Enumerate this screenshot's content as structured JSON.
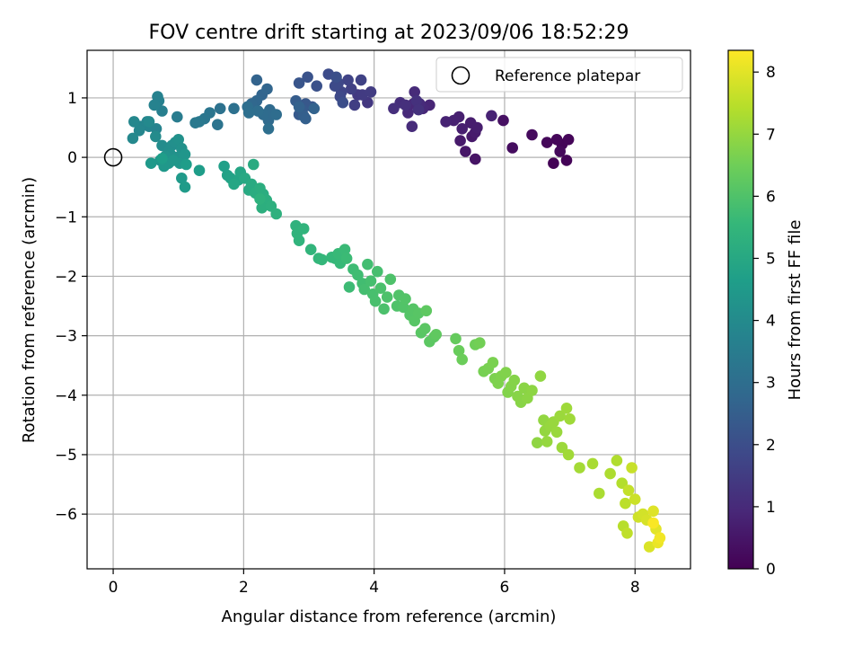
{
  "chart_data": {
    "type": "scatter",
    "title": "FOV centre drift starting at 2023/09/06 18:52:29",
    "xlabel": "Angular distance from reference (arcmin)",
    "ylabel": "Rotation from reference (arcmin)",
    "xlim": [
      -0.4,
      8.85
    ],
    "ylim": [
      -6.92,
      1.8
    ],
    "xticks": [
      0,
      2,
      4,
      6,
      8
    ],
    "yticks": [
      1,
      0,
      -1,
      -2,
      -3,
      -4,
      -5,
      -6
    ],
    "grid": true,
    "legend": {
      "placement": "top-right",
      "entries": [
        "Reference platepar"
      ]
    },
    "reference_point": {
      "x": 0,
      "y": 0,
      "label": "Reference platepar"
    },
    "colorbar": {
      "label": "Hours from first FF file",
      "range": [
        0,
        8.35
      ],
      "ticks": [
        0,
        1,
        2,
        3,
        4,
        5,
        6,
        7,
        8
      ],
      "colormap": "viridis",
      "colors": [
        "#440154",
        "#482878",
        "#3e4989",
        "#31688e",
        "#26828e",
        "#1f9e89",
        "#35b779",
        "#6ece58",
        "#b5de2b",
        "#fde725"
      ]
    },
    "points": [
      [
        6.75,
        -0.1,
        0.05
      ],
      [
        6.95,
        -0.05,
        0.08
      ],
      [
        6.88,
        0.22,
        0.1
      ],
      [
        6.98,
        0.3,
        0.12
      ],
      [
        6.8,
        0.3,
        0.14
      ],
      [
        6.65,
        0.25,
        0.16
      ],
      [
        6.85,
        0.1,
        0.18
      ],
      [
        6.42,
        0.38,
        0.22
      ],
      [
        6.12,
        0.16,
        0.28
      ],
      [
        5.98,
        0.62,
        0.35
      ],
      [
        5.55,
        -0.03,
        0.45
      ],
      [
        5.4,
        0.1,
        0.5
      ],
      [
        5.5,
        0.35,
        0.55
      ],
      [
        5.32,
        0.28,
        0.6
      ],
      [
        5.55,
        0.42,
        0.63
      ],
      [
        5.48,
        0.58,
        0.66
      ],
      [
        5.58,
        0.5,
        0.68
      ],
      [
        5.35,
        0.48,
        0.7
      ],
      [
        5.3,
        0.68,
        0.73
      ],
      [
        5.22,
        0.62,
        0.76
      ],
      [
        5.1,
        0.6,
        0.8
      ],
      [
        5.8,
        0.7,
        0.82
      ],
      [
        4.85,
        0.88,
        0.88
      ],
      [
        4.75,
        0.82,
        0.92
      ],
      [
        4.6,
        0.9,
        0.95
      ],
      [
        4.52,
        0.75,
        0.98
      ],
      [
        4.62,
        1.1,
        1.0
      ],
      [
        4.7,
        0.9,
        1.02
      ],
      [
        4.58,
        0.52,
        1.05
      ],
      [
        4.4,
        0.92,
        1.08
      ],
      [
        4.3,
        0.82,
        1.12
      ],
      [
        4.48,
        0.88,
        1.15
      ],
      [
        4.65,
        0.95,
        1.18
      ],
      [
        4.68,
        0.8,
        1.2
      ],
      [
        3.9,
        0.92,
        1.35
      ],
      [
        3.75,
        1.05,
        1.4
      ],
      [
        3.82,
        1.05,
        1.45
      ],
      [
        3.95,
        1.1,
        1.5
      ],
      [
        3.7,
        0.88,
        1.55
      ],
      [
        3.65,
        1.15,
        1.6
      ],
      [
        3.8,
        1.3,
        1.65
      ],
      [
        3.6,
        1.3,
        1.7
      ],
      [
        3.5,
        1.1,
        1.75
      ],
      [
        3.45,
        1.25,
        1.8
      ],
      [
        3.48,
        1.02,
        1.85
      ],
      [
        3.4,
        1.2,
        1.9
      ],
      [
        3.3,
        1.4,
        1.95
      ],
      [
        3.52,
        0.92,
        2.0
      ],
      [
        3.42,
        1.35,
        2.05
      ],
      [
        3.12,
        1.2,
        2.1
      ],
      [
        2.98,
        1.35,
        2.15
      ],
      [
        2.85,
        1.25,
        2.2
      ],
      [
        3.05,
        0.85,
        2.25
      ],
      [
        2.95,
        0.9,
        2.3
      ],
      [
        2.85,
        0.72,
        2.35
      ],
      [
        2.9,
        0.8,
        2.4
      ],
      [
        2.8,
        0.95,
        2.45
      ],
      [
        2.92,
        0.7,
        2.5
      ],
      [
        2.95,
        0.65,
        2.55
      ],
      [
        2.85,
        0.85,
        2.6
      ],
      [
        3.08,
        0.82,
        2.62
      ],
      [
        2.2,
        1.3,
        2.65
      ],
      [
        2.28,
        1.05,
        2.7
      ],
      [
        2.36,
        1.15,
        2.72
      ],
      [
        2.2,
        0.95,
        2.75
      ],
      [
        2.12,
        0.9,
        2.8
      ],
      [
        2.35,
        0.7,
        2.85
      ],
      [
        2.4,
        0.8,
        2.88
      ],
      [
        2.38,
        0.62,
        2.9
      ],
      [
        2.3,
        0.72,
        2.92
      ],
      [
        2.5,
        0.72,
        2.95
      ],
      [
        2.22,
        0.78,
        2.98
      ],
      [
        2.06,
        0.85,
        3.0
      ],
      [
        2.08,
        0.75,
        3.02
      ],
      [
        2.38,
        0.48,
        3.05
      ],
      [
        1.85,
        0.82,
        3.1
      ],
      [
        1.64,
        0.82,
        3.15
      ],
      [
        1.6,
        0.55,
        3.2
      ],
      [
        1.48,
        0.75,
        3.25
      ],
      [
        1.4,
        0.65,
        3.3
      ],
      [
        1.32,
        0.6,
        3.35
      ],
      [
        1.26,
        0.58,
        3.4
      ],
      [
        0.98,
        0.68,
        3.5
      ],
      [
        0.75,
        0.78,
        3.6
      ],
      [
        0.7,
        0.95,
        3.65
      ],
      [
        0.68,
        1.02,
        3.68
      ],
      [
        0.63,
        0.88,
        3.72
      ],
      [
        0.66,
        0.48,
        3.75
      ],
      [
        0.55,
        0.52,
        3.78
      ],
      [
        0.52,
        0.6,
        3.8
      ],
      [
        0.42,
        0.52,
        3.82
      ],
      [
        0.4,
        0.45,
        3.85
      ],
      [
        0.32,
        0.6,
        3.88
      ],
      [
        0.3,
        0.32,
        3.9
      ],
      [
        0.55,
        0.6,
        3.95
      ],
      [
        0.65,
        0.35,
        4.0
      ],
      [
        0.75,
        0.2,
        4.05
      ],
      [
        0.85,
        0.1,
        4.1
      ],
      [
        0.9,
        0.2,
        4.12
      ],
      [
        0.95,
        0.25,
        4.15
      ],
      [
        0.88,
        0.05,
        4.18
      ],
      [
        1.0,
        0.3,
        4.2
      ],
      [
        1.05,
        0.15,
        4.22
      ],
      [
        0.98,
        0.0,
        4.25
      ],
      [
        0.8,
        0.02,
        4.28
      ],
      [
        0.72,
        -0.05,
        4.3
      ],
      [
        0.85,
        -0.1,
        4.33
      ],
      [
        1.1,
        0.05,
        4.36
      ],
      [
        1.02,
        -0.1,
        4.4
      ],
      [
        0.92,
        -0.05,
        4.42
      ],
      [
        0.78,
        -0.15,
        4.45
      ],
      [
        0.58,
        -0.1,
        4.48
      ],
      [
        1.05,
        -0.35,
        4.52
      ],
      [
        1.1,
        -0.5,
        4.55
      ],
      [
        1.32,
        -0.22,
        4.6
      ],
      [
        1.12,
        -0.12,
        4.62
      ],
      [
        0.75,
        -0.02,
        4.65
      ],
      [
        1.7,
        -0.15,
        4.7
      ],
      [
        1.75,
        -0.3,
        4.75
      ],
      [
        1.8,
        -0.35,
        4.8
      ],
      [
        1.92,
        -0.38,
        4.85
      ],
      [
        1.95,
        -0.25,
        4.9
      ],
      [
        1.85,
        -0.45,
        4.95
      ],
      [
        2.02,
        -0.35,
        5.0
      ],
      [
        2.08,
        -0.55,
        5.05
      ],
      [
        2.12,
        -0.45,
        5.08
      ],
      [
        2.15,
        -0.12,
        5.1
      ],
      [
        2.18,
        -0.6,
        5.15
      ],
      [
        2.3,
        -0.62,
        5.18
      ],
      [
        2.25,
        -0.52,
        5.2
      ],
      [
        2.35,
        -0.72,
        5.22
      ],
      [
        2.28,
        -0.85,
        5.25
      ],
      [
        2.42,
        -0.82,
        5.28
      ],
      [
        2.5,
        -0.95,
        5.3
      ],
      [
        2.25,
        -0.7,
        5.33
      ],
      [
        2.8,
        -1.15,
        5.35
      ],
      [
        2.82,
        -1.28,
        5.38
      ],
      [
        2.85,
        -1.4,
        5.4
      ],
      [
        2.92,
        -1.2,
        5.42
      ],
      [
        3.03,
        -1.55,
        5.45
      ],
      [
        3.15,
        -1.7,
        5.5
      ],
      [
        3.2,
        -1.72,
        5.52
      ],
      [
        3.35,
        -1.68,
        5.55
      ],
      [
        3.4,
        -1.7,
        5.57
      ],
      [
        3.48,
        -1.78,
        5.6
      ],
      [
        3.45,
        -1.62,
        5.62
      ],
      [
        3.55,
        -1.55,
        5.65
      ],
      [
        3.58,
        -1.7,
        5.67
      ],
      [
        3.62,
        -2.18,
        5.7
      ],
      [
        3.68,
        -1.88,
        5.72
      ],
      [
        3.75,
        -1.98,
        5.75
      ],
      [
        3.82,
        -2.12,
        5.78
      ],
      [
        3.9,
        -1.8,
        5.8
      ],
      [
        3.85,
        -2.22,
        5.82
      ],
      [
        3.95,
        -2.08,
        5.84
      ],
      [
        4.05,
        -1.92,
        5.86
      ],
      [
        3.98,
        -2.3,
        5.88
      ],
      [
        4.02,
        -2.42,
        5.9
      ],
      [
        4.1,
        -2.2,
        5.92
      ],
      [
        4.15,
        -2.55,
        5.94
      ],
      [
        4.2,
        -2.35,
        5.96
      ],
      [
        4.25,
        -2.05,
        5.98
      ],
      [
        4.35,
        -2.5,
        6.0
      ],
      [
        4.38,
        -2.32,
        6.02
      ],
      [
        4.45,
        -2.52,
        6.04
      ],
      [
        4.48,
        -2.38,
        6.06
      ],
      [
        4.55,
        -2.65,
        6.08
      ],
      [
        4.6,
        -2.55,
        6.1
      ],
      [
        4.62,
        -2.75,
        6.12
      ],
      [
        4.68,
        -2.62,
        6.14
      ],
      [
        4.72,
        -2.95,
        6.16
      ],
      [
        4.78,
        -2.88,
        6.18
      ],
      [
        4.85,
        -3.1,
        6.2
      ],
      [
        4.92,
        -3.02,
        6.22
      ],
      [
        4.8,
        -2.58,
        6.24
      ],
      [
        4.95,
        -2.98,
        6.26
      ],
      [
        5.25,
        -3.05,
        6.35
      ],
      [
        5.3,
        -3.25,
        6.4
      ],
      [
        5.35,
        -3.4,
        6.45
      ],
      [
        5.55,
        -3.15,
        6.5
      ],
      [
        5.62,
        -3.12,
        6.55
      ],
      [
        5.68,
        -3.6,
        6.6
      ],
      [
        5.75,
        -3.55,
        6.62
      ],
      [
        5.82,
        -3.45,
        6.65
      ],
      [
        5.85,
        -3.72,
        6.68
      ],
      [
        5.9,
        -3.8,
        6.7
      ],
      [
        5.95,
        -3.68,
        6.72
      ],
      [
        6.02,
        -3.62,
        6.74
      ],
      [
        6.05,
        -3.95,
        6.76
      ],
      [
        6.1,
        -3.85,
        6.78
      ],
      [
        6.15,
        -3.75,
        6.8
      ],
      [
        6.2,
        -4.02,
        6.82
      ],
      [
        6.25,
        -4.12,
        6.84
      ],
      [
        6.3,
        -3.88,
        6.86
      ],
      [
        6.35,
        -4.05,
        6.88
      ],
      [
        6.42,
        -3.92,
        6.9
      ],
      [
        6.5,
        -4.8,
        6.92
      ],
      [
        6.55,
        -3.68,
        6.94
      ],
      [
        6.6,
        -4.42,
        6.96
      ],
      [
        6.62,
        -4.6,
        6.98
      ],
      [
        6.65,
        -4.78,
        7.0
      ],
      [
        6.7,
        -4.52,
        7.02
      ],
      [
        6.75,
        -4.45,
        7.04
      ],
      [
        6.8,
        -4.62,
        7.06
      ],
      [
        6.85,
        -4.35,
        7.08
      ],
      [
        6.88,
        -4.88,
        7.1
      ],
      [
        6.95,
        -4.22,
        7.12
      ],
      [
        7.0,
        -4.4,
        7.14
      ],
      [
        6.98,
        -5.0,
        7.16
      ],
      [
        7.15,
        -5.22,
        7.2
      ],
      [
        7.35,
        -5.15,
        7.25
      ],
      [
        7.45,
        -5.65,
        7.28
      ],
      [
        7.62,
        -5.32,
        7.32
      ],
      [
        7.72,
        -5.1,
        7.36
      ],
      [
        7.8,
        -5.48,
        7.4
      ],
      [
        7.82,
        -6.2,
        7.45
      ],
      [
        7.85,
        -5.82,
        7.5
      ],
      [
        7.88,
        -6.32,
        7.55
      ],
      [
        7.9,
        -5.6,
        7.6
      ],
      [
        7.95,
        -5.22,
        7.65
      ],
      [
        8.0,
        -5.75,
        7.7
      ],
      [
        8.05,
        -6.05,
        7.75
      ],
      [
        8.12,
        -6.0,
        7.8
      ],
      [
        8.18,
        -6.1,
        7.85
      ],
      [
        8.22,
        -6.55,
        7.9
      ],
      [
        8.28,
        -5.95,
        7.95
      ],
      [
        8.32,
        -6.25,
        8.0
      ],
      [
        8.35,
        -6.48,
        8.1
      ],
      [
        8.38,
        -6.4,
        8.2
      ],
      [
        8.28,
        -6.15,
        8.3
      ]
    ]
  }
}
